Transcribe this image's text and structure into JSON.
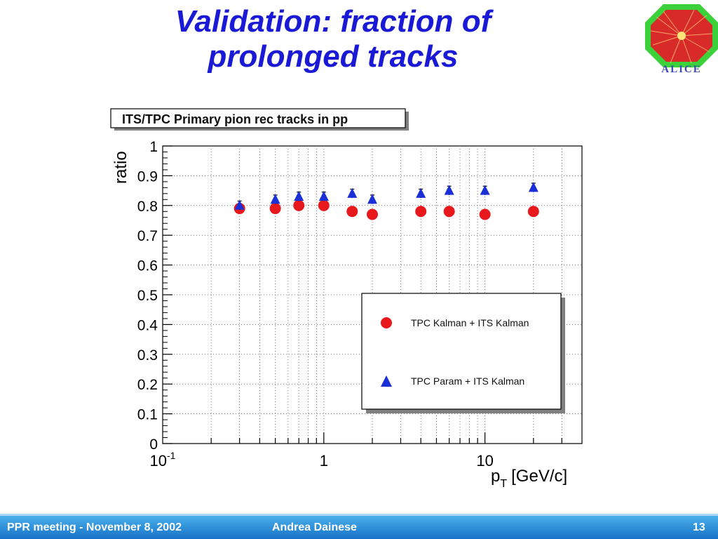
{
  "slide": {
    "title_line1": "Validation: fraction of",
    "title_line2": "prolonged tracks",
    "logo_text": "ALICE"
  },
  "footer": {
    "meeting": "PPR meeting - November 8, 2002",
    "author": "Andrea Dainese",
    "page": "13"
  },
  "chart_data": {
    "type": "scatter",
    "title": "ITS/TPC Primary pion rec tracks in pp",
    "xlabel": "p",
    "xlabel_sub": "T",
    "xlabel_unit": "[GeV/c]",
    "ylabel": "ratio",
    "xscale": "log",
    "xlim": [
      0.1,
      40
    ],
    "ylim": [
      0,
      1
    ],
    "xticks": [
      {
        "value": 0.1,
        "base": "10",
        "exp": "-1"
      },
      {
        "value": 1,
        "base": "1",
        "exp": ""
      },
      {
        "value": 10,
        "base": "10",
        "exp": ""
      }
    ],
    "yticks": [
      "0",
      "0.1",
      "0.2",
      "0.3",
      "0.4",
      "0.5",
      "0.6",
      "0.7",
      "0.8",
      "0.9",
      "1"
    ],
    "grid": true,
    "legend_position": "lower-right",
    "series": [
      {
        "name": "TPC Kalman + ITS Kalman",
        "marker": "circle",
        "color": "#e8191c",
        "x": [
          0.3,
          0.5,
          0.7,
          1.0,
          1.5,
          2.0,
          4.0,
          6.0,
          10.0,
          20.0
        ],
        "y": [
          0.79,
          0.79,
          0.8,
          0.8,
          0.78,
          0.77,
          0.78,
          0.78,
          0.77,
          0.78
        ]
      },
      {
        "name": "TPC Param + ITS Kalman",
        "marker": "triangle",
        "color": "#1a2fd6",
        "x": [
          0.3,
          0.5,
          0.7,
          1.0,
          1.5,
          2.0,
          4.0,
          6.0,
          10.0,
          20.0
        ],
        "y": [
          0.8,
          0.82,
          0.83,
          0.83,
          0.84,
          0.82,
          0.84,
          0.85,
          0.85,
          0.86
        ],
        "yerr": [
          0.015,
          0.015,
          0.015,
          0.015,
          0.015,
          0.015,
          0.015,
          0.015,
          0.015,
          0.015
        ]
      }
    ]
  }
}
